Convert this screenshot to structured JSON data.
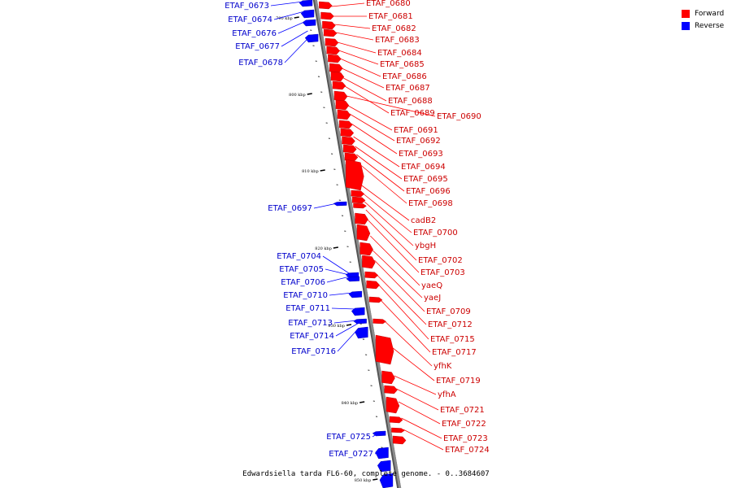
{
  "caption": "Edwardsiella tarda FL6-60, complete genome. - 0..3684607",
  "legend": [
    {
      "label": "Forward",
      "color": "#ff0000"
    },
    {
      "label": "Reverse",
      "color": "#0000ff"
    }
  ],
  "colors": {
    "forward": "#ff0000",
    "reverse": "#0000ff",
    "backbone": "#8c8c8c"
  },
  "ticks": [
    "790 kbp",
    "800 kbp",
    "810 kbp",
    "820 kbp",
    "830 kbp",
    "840 kbp",
    "850 kbp"
  ],
  "forward_genes": [
    "ETAF_0680",
    "ETAF_0681",
    "ETAF_0682",
    "ETAF_0683",
    "ETAF_0684",
    "ETAF_0685",
    "ETAF_0686",
    "ETAF_0687",
    "ETAF_0688",
    "ETAF_0689",
    "ETAF_0690",
    "ETAF_0691",
    "ETAF_0692",
    "ETAF_0693",
    "ETAF_0694",
    "ETAF_0695",
    "ETAF_0696",
    "ETAF_0698",
    "cadB2",
    "ETAF_0700",
    "ybgH",
    "ETAF_0702",
    "ETAF_0703",
    "yaeQ",
    "yaeJ",
    "ETAF_0709",
    "ETAF_0712",
    "ETAF_0715",
    "ETAF_0717",
    "yfhK",
    "ETAF_0719",
    "yfhA",
    "ETAF_0721",
    "ETAF_0722",
    "ETAF_0723",
    "ETAF_0724"
  ],
  "reverse_genes": [
    "ETAF_0673",
    "ETAF_0674",
    "ETAF_0676",
    "ETAF_0677",
    "ETAF_0678",
    "ETAF_0697",
    "ETAF_0704",
    "ETAF_0705",
    "ETAF_0706",
    "ETAF_0710",
    "ETAF_0711",
    "ETAF_0713",
    "ETAF_0714",
    "ETAF_0716",
    "ETAF_0725",
    "ETAF_0727"
  ]
}
